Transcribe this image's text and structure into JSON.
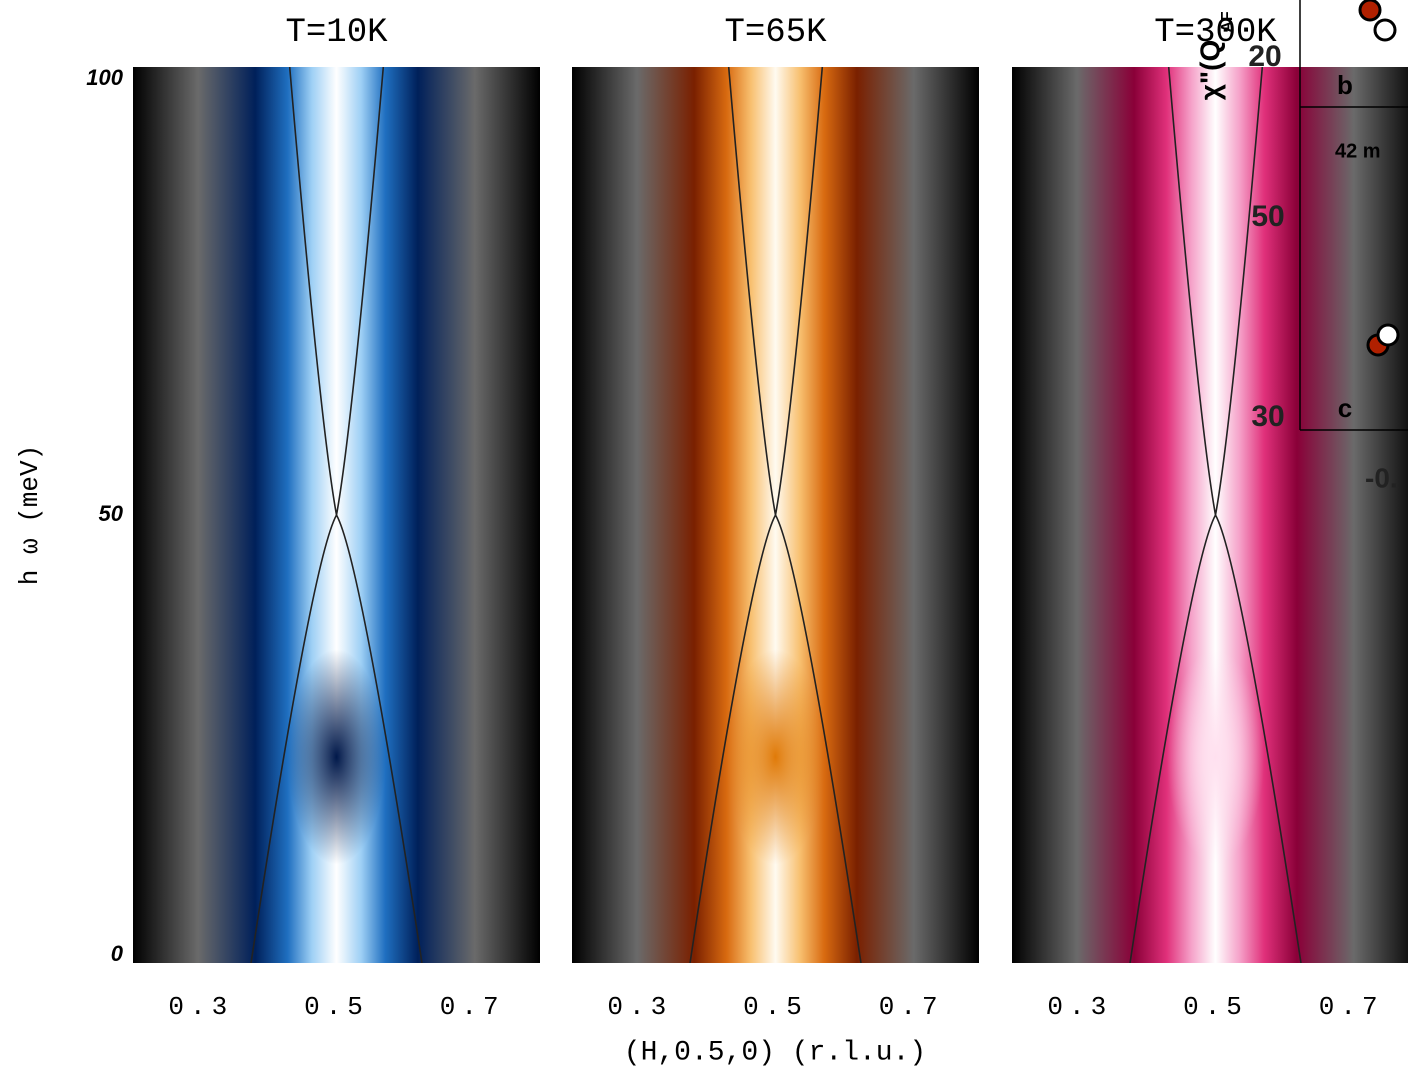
{
  "chart_data": [
    {
      "type": "heatmap",
      "title": "T=10K",
      "xlim": [
        0.2,
        0.8
      ],
      "xticks": [
        0.3,
        0.5,
        0.7
      ],
      "ylim": [
        0,
        100
      ],
      "yticks": [
        0,
        50,
        100
      ],
      "y_label": "h ω (meV)",
      "colors": [
        "#000000",
        "#6a6a6a",
        "#00205a",
        "#1f6fc0",
        "#9fd0f5",
        "#ffffff"
      ],
      "blob_color": "#00184a"
    },
    {
      "type": "heatmap",
      "title": "T=65K",
      "xlim": [
        0.2,
        0.8
      ],
      "xticks": [
        0.3,
        0.5,
        0.7
      ],
      "ylim": [
        0,
        100
      ],
      "x_label": "(H,0.5,0) (r.l.u.)",
      "colors": [
        "#000000",
        "#6a6a6a",
        "#7a2000",
        "#d86a10",
        "#f8c070",
        "#fffaf0"
      ],
      "blob_color": "#e07a08"
    },
    {
      "type": "heatmap",
      "title": "T=300K",
      "xlim": [
        0.2,
        0.8
      ],
      "xticks": [
        0.3,
        0.5,
        0.7
      ],
      "ylim": [
        0,
        100
      ],
      "colors": [
        "#000000",
        "#6a6a6a",
        "#8a0038",
        "#e0307a",
        "#f5a0c8",
        "#ffffff"
      ],
      "blob_color": "#ffe0ef"
    }
  ],
  "inset": {
    "y_label": "χ\"(Q",
    "y_label_sub": "AF",
    "tick_labels": [
      "20",
      "50",
      "30"
    ],
    "panel_labels": [
      "b",
      "c"
    ],
    "annotation": "42 m",
    "x_fragment": "-0."
  }
}
